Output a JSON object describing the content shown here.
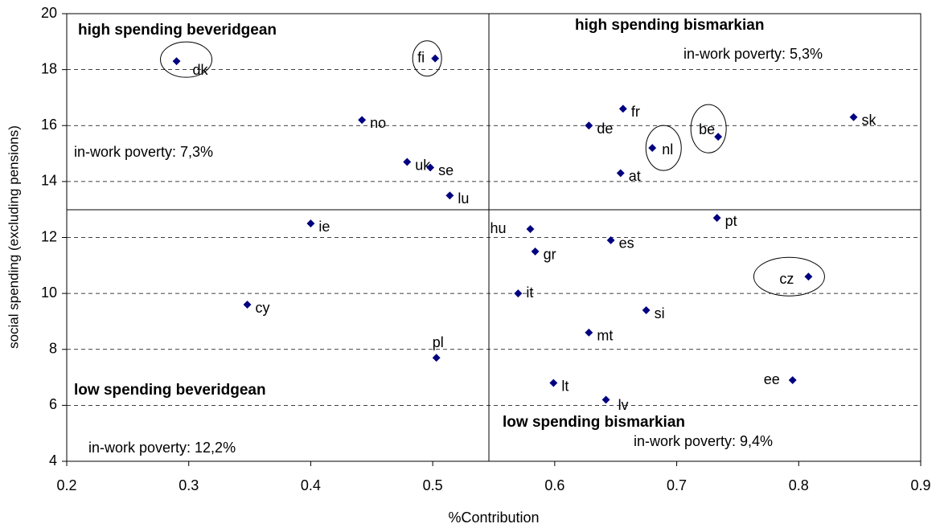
{
  "chart_data": {
    "type": "scatter",
    "x_label": "%Contribution",
    "y_label": "social spending (excluding pensions)",
    "point_labels": [
      "dk",
      "fi",
      "no",
      "uk",
      "se",
      "lu",
      "ie",
      "cy",
      "pl",
      "fr",
      "de",
      "nl",
      "at",
      "be",
      "sk",
      "pt",
      "hu",
      "gr",
      "es",
      "it",
      "cz",
      "si",
      "mt",
      "lt",
      "lv",
      "ee"
    ],
    "x": [
      0.29,
      0.502,
      0.442,
      0.479,
      0.498,
      0.514,
      0.4,
      0.348,
      0.503,
      0.656,
      0.628,
      0.68,
      0.654,
      0.734,
      0.845,
      0.733,
      0.58,
      0.584,
      0.646,
      0.57,
      0.808,
      0.675,
      0.628,
      0.599,
      0.642,
      0.795
    ],
    "values": [
      18.3,
      18.4,
      16.2,
      14.7,
      14.5,
      13.5,
      12.5,
      9.6,
      7.7,
      16.6,
      16.0,
      15.2,
      14.3,
      15.6,
      16.3,
      12.7,
      12.3,
      11.5,
      11.9,
      10.0,
      10.6,
      9.4,
      8.6,
      6.8,
      6.2,
      6.9
    ],
    "color": "#000080",
    "xlim": [
      0.2,
      0.9
    ],
    "xticks": [
      0.2,
      0.3,
      0.4,
      0.5,
      0.6,
      0.7,
      0.8,
      0.9
    ],
    "ylim": [
      4,
      20
    ],
    "yticks": [
      4,
      6,
      8,
      10,
      12,
      14,
      16,
      18,
      20
    ],
    "grid": true,
    "annotations": [
      "high spending beveridgean",
      "high spending bismarkian",
      "in-work poverty: 5,3%",
      "in-work poverty: 7,3%",
      "low spending beveridgean",
      "in-work poverty: 12,2%",
      "low spending bismarkian",
      "in-work poverty: 9,4%"
    ]
  }
}
